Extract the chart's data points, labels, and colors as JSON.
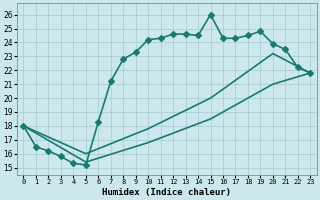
{
  "xlabel": "Humidex (Indice chaleur)",
  "bg_color": "#cce8ec",
  "line_color": "#1a7a6e",
  "grid_color": "#aacfd4",
  "xlim": [
    -0.5,
    23.5
  ],
  "ylim": [
    14.5,
    26.8
  ],
  "xticks": [
    0,
    1,
    2,
    3,
    4,
    5,
    6,
    7,
    8,
    9,
    10,
    11,
    12,
    13,
    14,
    15,
    16,
    17,
    18,
    19,
    20,
    21,
    22,
    23
  ],
  "yticks": [
    15,
    16,
    17,
    18,
    19,
    20,
    21,
    22,
    23,
    24,
    25,
    26
  ],
  "line1_x": [
    0,
    1,
    2,
    3,
    4,
    5,
    6,
    7,
    8,
    9,
    10,
    11,
    12,
    13,
    14,
    15,
    16,
    17,
    18,
    19,
    20,
    21,
    22,
    23
  ],
  "line1_y": [
    18,
    16.5,
    16.2,
    15.8,
    15.3,
    15.2,
    18.3,
    21.2,
    22.8,
    23.3,
    24.2,
    24.3,
    24.6,
    24.6,
    24.5,
    26.0,
    24.3,
    24.3,
    24.5,
    24.8,
    23.9,
    23.5,
    22.2,
    21.8
  ],
  "line2_x": [
    0,
    5,
    10,
    15,
    20,
    23
  ],
  "line2_y": [
    18,
    15.4,
    16.8,
    18.5,
    21.0,
    21.8
  ],
  "line3_x": [
    0,
    5,
    10,
    15,
    20,
    23
  ],
  "line3_y": [
    18,
    16.0,
    17.8,
    20.0,
    23.2,
    21.8
  ],
  "markersize": 3,
  "linewidth": 1.2
}
